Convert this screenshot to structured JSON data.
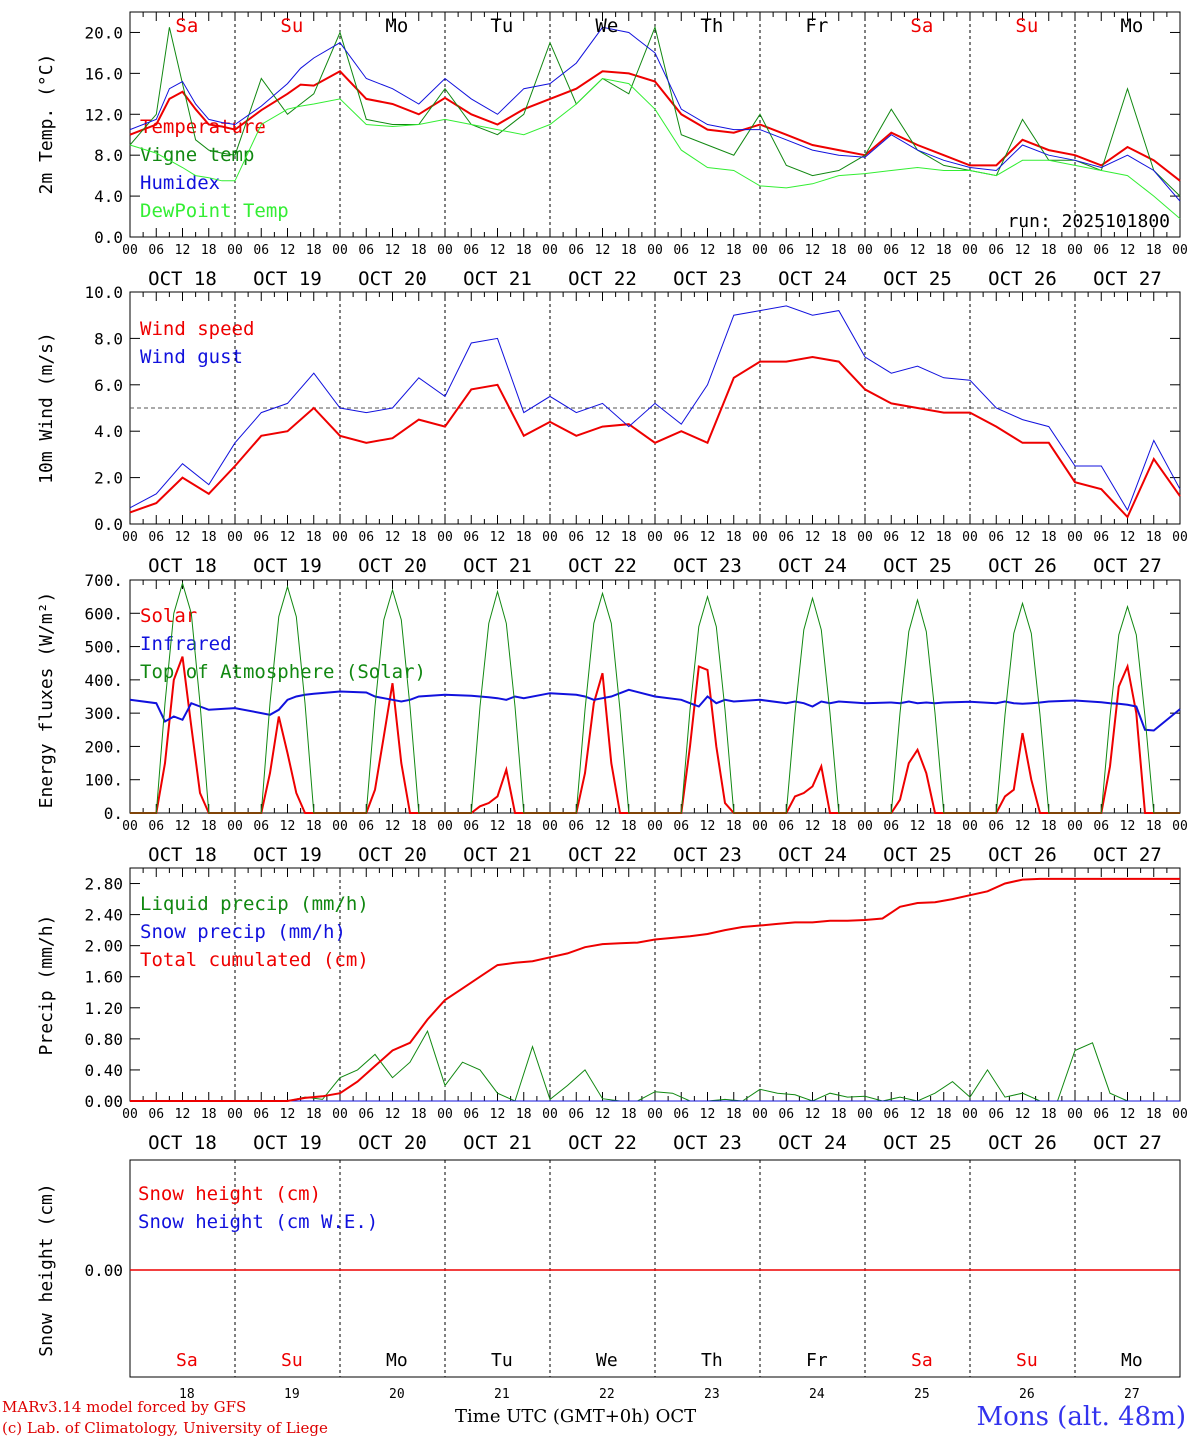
{
  "colors": {
    "red": "#ee0000",
    "green": "#118811",
    "blue": "#1111dd",
    "lightgreen": "#33ee33",
    "weekday": "#000000",
    "weekend": "#ee0000"
  },
  "days": [
    "Sa",
    "Su",
    "Mo",
    "Tu",
    "We",
    "Th",
    "Fr",
    "Sa",
    "Su",
    "Mo"
  ],
  "weekend_flags": [
    true,
    true,
    false,
    false,
    false,
    false,
    false,
    true,
    true,
    false
  ],
  "date_labels": [
    "OCT 18",
    "OCT 19",
    "OCT 20",
    "OCT 21",
    "OCT 22",
    "OCT 23",
    "OCT 24",
    "OCT 25",
    "OCT 26",
    "OCT 27"
  ],
  "hour_labels": [
    "00",
    "06",
    "12",
    "18"
  ],
  "final_hour_label": "00",
  "bottom_day_numbers": [
    "18",
    "19",
    "20",
    "21",
    "22",
    "23",
    "24",
    "25",
    "26",
    "27"
  ],
  "footer": {
    "credit1": "MARv3.14 model forced by GFS",
    "credit2": "(c) Lab. of Climatology, University of Liege",
    "xtitle": "Time UTC (GMT+0h) OCT",
    "station": "Mons (alt. 48m)"
  },
  "chart_data": [
    {
      "type": "line",
      "ylabel": "2m Temp. (°C)",
      "ylim": [
        0,
        22
      ],
      "yticks": [
        "0.0",
        "4.0",
        "8.0",
        "12.0",
        "16.0",
        "20.0"
      ],
      "run_label": "run: 2025101800",
      "x_hours": [
        0,
        6,
        9,
        12,
        15,
        18,
        21,
        24,
        30,
        36,
        39,
        42,
        48,
        54,
        60,
        66,
        72,
        78,
        84,
        90,
        96,
        102,
        108,
        114,
        120,
        126,
        132,
        138,
        144,
        150,
        156,
        162,
        168,
        174,
        180,
        186,
        192,
        198,
        204,
        210,
        216,
        222,
        228,
        234,
        240
      ],
      "series": [
        {
          "name": "Temperature",
          "color": "red",
          "width": 2,
          "values": [
            10.0,
            11.0,
            13.5,
            14.2,
            12.5,
            11.0,
            10.8,
            10.5,
            12.4,
            14.0,
            14.9,
            14.8,
            16.2,
            13.5,
            13.0,
            12.0,
            13.6,
            12.0,
            11.0,
            12.5,
            13.5,
            14.5,
            16.2,
            16.0,
            15.2,
            12.0,
            10.5,
            10.2,
            11.0,
            10.0,
            9.0,
            8.5,
            8.0,
            10.2,
            9.0,
            8.0,
            7.0,
            7.0,
            9.5,
            8.5,
            8.0,
            7.0,
            8.8,
            7.5,
            5.5
          ]
        },
        {
          "name": "Vigne temp",
          "color": "green",
          "width": 1,
          "values": [
            9.0,
            12.0,
            20.5,
            15.0,
            9.5,
            8.5,
            8.2,
            8.0,
            15.5,
            12.0,
            13.0,
            14.0,
            20.0,
            11.5,
            11.0,
            11.0,
            14.5,
            11.0,
            10.0,
            12.0,
            19.0,
            13.0,
            15.5,
            14.0,
            20.5,
            10.0,
            9.0,
            8.0,
            12.0,
            7.0,
            6.0,
            6.5,
            8.0,
            12.5,
            8.5,
            7.0,
            6.5,
            6.0,
            11.5,
            7.5,
            7.5,
            6.5,
            14.5,
            6.5,
            4.0
          ]
        },
        {
          "name": "Humidex",
          "color": "blue",
          "width": 1,
          "values": [
            10.5,
            11.5,
            14.5,
            15.2,
            13.0,
            11.5,
            11.2,
            11.0,
            12.8,
            15.0,
            16.5,
            17.5,
            19.0,
            15.5,
            14.5,
            13.0,
            15.5,
            13.5,
            12.0,
            14.5,
            15.0,
            17.0,
            20.5,
            20.0,
            18.0,
            12.5,
            11.0,
            10.5,
            10.5,
            9.5,
            8.5,
            8.0,
            7.8,
            10.0,
            8.5,
            7.5,
            6.8,
            6.5,
            9.0,
            8.0,
            7.5,
            6.8,
            8.0,
            6.5,
            3.5
          ]
        },
        {
          "name": "DewPoint Temp",
          "color": "lightgreen",
          "width": 1,
          "values": [
            9.0,
            8.2,
            7.5,
            6.8,
            6.0,
            5.8,
            5.5,
            5.5,
            11.0,
            12.5,
            12.8,
            13.0,
            13.5,
            11.0,
            10.8,
            11.0,
            11.5,
            11.0,
            10.5,
            10.0,
            11.0,
            13.0,
            15.5,
            15.0,
            12.5,
            8.5,
            6.8,
            6.5,
            5.0,
            4.8,
            5.2,
            6.0,
            6.2,
            6.5,
            6.8,
            6.5,
            6.5,
            6.0,
            7.5,
            7.5,
            7.0,
            6.5,
            6.0,
            4.0,
            1.8
          ]
        }
      ]
    },
    {
      "type": "line",
      "ylabel": "10m Wind (m/s)",
      "ylim": [
        0,
        10
      ],
      "yticks": [
        "0.0",
        "2.0",
        "4.0",
        "6.0",
        "8.0",
        "10.0"
      ],
      "reference_line": 5,
      "x_hours": [
        0,
        6,
        12,
        18,
        24,
        30,
        36,
        42,
        48,
        54,
        60,
        66,
        72,
        78,
        84,
        90,
        96,
        102,
        108,
        114,
        120,
        126,
        132,
        138,
        144,
        150,
        156,
        162,
        168,
        174,
        180,
        186,
        192,
        198,
        204,
        210,
        216,
        222,
        228,
        234,
        240
      ],
      "series": [
        {
          "name": "Wind speed",
          "color": "red",
          "width": 2,
          "values": [
            0.5,
            0.9,
            2.0,
            1.3,
            2.5,
            3.8,
            4.0,
            5.0,
            3.8,
            3.5,
            3.7,
            4.5,
            4.2,
            5.8,
            6.0,
            3.8,
            4.4,
            3.8,
            4.2,
            4.3,
            3.5,
            4.0,
            3.5,
            6.3,
            7.0,
            7.0,
            7.2,
            7.0,
            5.8,
            5.2,
            5.0,
            4.8,
            4.8,
            4.2,
            3.5,
            3.5,
            1.8,
            1.5,
            0.3,
            2.8,
            1.2
          ]
        },
        {
          "name": "Wind gust",
          "color": "blue",
          "width": 1,
          "values": [
            0.7,
            1.3,
            2.6,
            1.7,
            3.5,
            4.8,
            5.2,
            6.5,
            5.0,
            4.8,
            5.0,
            6.3,
            5.5,
            7.8,
            8.0,
            4.8,
            5.5,
            4.8,
            5.2,
            4.2,
            5.2,
            4.3,
            6.0,
            9.0,
            9.2,
            9.4,
            9.0,
            9.2,
            7.2,
            6.5,
            6.8,
            6.3,
            6.2,
            5.0,
            4.5,
            4.2,
            2.5,
            2.5,
            0.6,
            3.6,
            1.5
          ]
        }
      ]
    },
    {
      "type": "line",
      "ylabel": "Energy fluxes (W/m²)",
      "ylim": [
        0,
        700
      ],
      "yticks": [
        "0.",
        "100.",
        "200.",
        "300.",
        "400.",
        "500.",
        "600.",
        "700."
      ],
      "x_hours": [
        0,
        6,
        8,
        10,
        12,
        14,
        16,
        18,
        24,
        30,
        32,
        34,
        36,
        38,
        40,
        42,
        48,
        54,
        56,
        58,
        60,
        62,
        64,
        66,
        72,
        78,
        80,
        82,
        84,
        86,
        88,
        90,
        96,
        102,
        104,
        106,
        108,
        110,
        112,
        114,
        120,
        126,
        128,
        130,
        132,
        134,
        136,
        138,
        144,
        150,
        152,
        154,
        156,
        158,
        160,
        162,
        168,
        174,
        176,
        178,
        180,
        182,
        184,
        186,
        192,
        198,
        200,
        202,
        204,
        206,
        208,
        210,
        216,
        222,
        224,
        226,
        228,
        230,
        232,
        234,
        240
      ],
      "series": [
        {
          "name": "Solar",
          "color": "red",
          "width": 2,
          "values": [
            0,
            0,
            150,
            400,
            470,
            260,
            60,
            0,
            0,
            0,
            120,
            290,
            180,
            60,
            0,
            0,
            0,
            0,
            70,
            230,
            390,
            150,
            0,
            0,
            0,
            0,
            20,
            30,
            50,
            130,
            0,
            0,
            0,
            0,
            120,
            330,
            420,
            150,
            0,
            0,
            0,
            0,
            200,
            440,
            430,
            200,
            30,
            0,
            0,
            0,
            50,
            60,
            80,
            140,
            0,
            0,
            0,
            0,
            40,
            150,
            190,
            120,
            0,
            0,
            0,
            0,
            50,
            70,
            240,
            100,
            0,
            0,
            0,
            0,
            140,
            380,
            440,
            300,
            0,
            0,
            0
          ]
        },
        {
          "name": "Infrared",
          "color": "blue",
          "width": 2,
          "values": [
            340,
            330,
            275,
            290,
            280,
            330,
            320,
            310,
            315,
            300,
            295,
            310,
            340,
            350,
            355,
            358,
            365,
            362,
            350,
            345,
            340,
            335,
            340,
            350,
            355,
            352,
            350,
            348,
            345,
            340,
            350,
            345,
            360,
            355,
            350,
            340,
            345,
            350,
            360,
            370,
            350,
            340,
            330,
            320,
            350,
            330,
            340,
            335,
            340,
            330,
            335,
            330,
            320,
            335,
            330,
            335,
            330,
            332,
            330,
            335,
            330,
            332,
            330,
            332,
            334,
            330,
            335,
            330,
            328,
            330,
            332,
            335,
            338,
            333,
            330,
            328,
            325,
            320,
            250,
            248,
            312
          ]
        },
        {
          "name": "Top of Atmosphere (Solar)",
          "color": "green",
          "width": 1,
          "values": [
            0,
            0,
            330,
            600,
            690,
            600,
            330,
            0,
            0,
            0,
            330,
            590,
            680,
            590,
            330,
            0,
            0,
            0,
            320,
            580,
            670,
            580,
            320,
            0,
            0,
            0,
            320,
            570,
            665,
            570,
            320,
            0,
            0,
            0,
            310,
            570,
            660,
            570,
            310,
            0,
            0,
            0,
            310,
            560,
            650,
            560,
            310,
            0,
            0,
            0,
            300,
            550,
            645,
            550,
            300,
            0,
            0,
            0,
            300,
            545,
            640,
            545,
            300,
            0,
            0,
            0,
            295,
            540,
            630,
            540,
            295,
            0,
            0,
            0,
            290,
            535,
            620,
            535,
            290,
            0,
            0
          ]
        }
      ]
    },
    {
      "type": "line",
      "ylabel": "Precip (mm/h)",
      "ylim": [
        0,
        3.0
      ],
      "yticks": [
        "0.00",
        "0.40",
        "0.80",
        "1.20",
        "1.60",
        "2.00",
        "2.40",
        "2.80"
      ],
      "x_hours": [
        0,
        36,
        40,
        44,
        48,
        52,
        56,
        60,
        64,
        68,
        72,
        76,
        80,
        84,
        88,
        92,
        96,
        100,
        104,
        108,
        112,
        116,
        120,
        124,
        128,
        132,
        136,
        140,
        144,
        148,
        152,
        156,
        160,
        164,
        168,
        172,
        176,
        180,
        184,
        188,
        192,
        196,
        200,
        204,
        208,
        212,
        216,
        220,
        224,
        228,
        232,
        236,
        240
      ],
      "series": [
        {
          "name": "Liquid precip (mm/h)",
          "color": "green",
          "width": 1,
          "values": [
            0,
            0,
            0.05,
            0.02,
            0.3,
            0.4,
            0.6,
            0.3,
            0.5,
            0.9,
            0.2,
            0.5,
            0.4,
            0.1,
            0,
            0.7,
            0.02,
            0.2,
            0.4,
            0.03,
            0,
            0,
            0.12,
            0.1,
            0,
            0,
            0.02,
            0,
            0.15,
            0.1,
            0.08,
            0,
            0.1,
            0.05,
            0.06,
            0,
            0.05,
            0,
            0.1,
            0.25,
            0.05,
            0.4,
            0.05,
            0.1,
            0,
            0,
            0.65,
            0.75,
            0.1,
            0,
            0,
            0,
            0
          ]
        },
        {
          "name": "Snow precip (mm/h)",
          "color": "blue",
          "width": 1,
          "values": [
            0,
            0,
            0,
            0,
            0,
            0,
            0,
            0,
            0,
            0,
            0,
            0,
            0,
            0,
            0,
            0,
            0,
            0,
            0,
            0,
            0,
            0,
            0,
            0,
            0,
            0,
            0,
            0,
            0,
            0,
            0,
            0,
            0,
            0,
            0,
            0,
            0,
            0,
            0,
            0,
            0,
            0,
            0,
            0,
            0,
            0,
            0,
            0,
            0,
            0,
            0,
            0,
            0
          ]
        },
        {
          "name": "Total cumulated (cm)",
          "color": "red",
          "width": 2,
          "values": [
            0,
            0,
            0.04,
            0.06,
            0.1,
            0.25,
            0.45,
            0.65,
            0.75,
            1.05,
            1.3,
            1.45,
            1.6,
            1.75,
            1.78,
            1.8,
            1.85,
            1.9,
            1.98,
            2.02,
            2.03,
            2.04,
            2.08,
            2.1,
            2.12,
            2.15,
            2.2,
            2.24,
            2.26,
            2.28,
            2.3,
            2.3,
            2.32,
            2.32,
            2.33,
            2.35,
            2.5,
            2.55,
            2.56,
            2.6,
            2.65,
            2.7,
            2.8,
            2.85,
            2.86,
            2.86,
            2.86,
            2.86,
            2.86,
            2.86,
            2.86,
            2.86,
            2.86
          ]
        }
      ]
    },
    {
      "type": "line",
      "ylabel": "Snow height (cm)",
      "zero_label": "0.00",
      "series": [
        {
          "name": "Snow height (cm)",
          "color": "red"
        },
        {
          "name": "Snow height (cm W.E.)",
          "color": "blue"
        }
      ]
    }
  ]
}
